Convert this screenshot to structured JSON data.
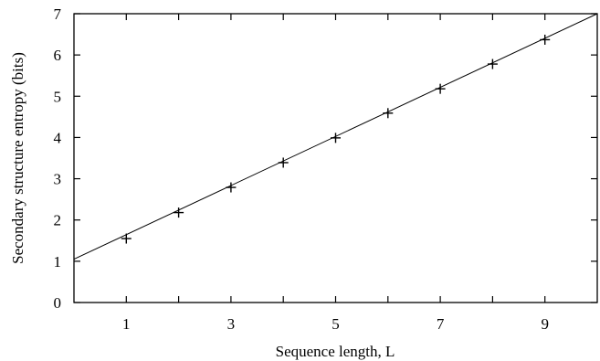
{
  "chart_data": {
    "type": "scatter",
    "xlabel": "Sequence length, L",
    "ylabel": "Secondary structure entropy (bits)",
    "xlim": [
      0,
      10
    ],
    "ylim": [
      0,
      7
    ],
    "x_ticks": [
      1,
      3,
      5,
      7,
      9
    ],
    "x_minor_ticks": [
      2,
      4,
      6,
      8
    ],
    "y_ticks": [
      0,
      1,
      2,
      3,
      4,
      5,
      6,
      7
    ],
    "grid": false,
    "legend": "none",
    "series": [
      {
        "marker": "plus",
        "x": [
          1,
          2,
          3,
          4,
          5,
          6,
          7,
          8,
          9
        ],
        "y": [
          1.55,
          2.18,
          2.79,
          3.39,
          3.99,
          4.59,
          5.18,
          5.78,
          6.37
        ]
      }
    ],
    "fit_line": {
      "x": [
        0,
        10
      ],
      "y": [
        1.05,
        7.0
      ]
    }
  }
}
